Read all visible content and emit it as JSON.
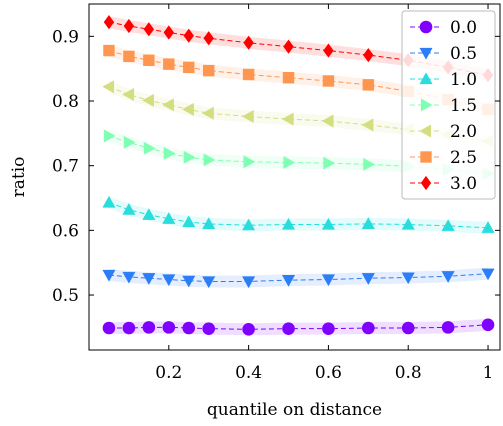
{
  "chart_data": {
    "type": "line",
    "xlabel": "quantile on distance",
    "ylabel": "ratio",
    "xlim": [
      0.0,
      1.03
    ],
    "ylim": [
      0.415,
      0.95
    ],
    "xticks": [
      0.2,
      0.4,
      0.6,
      0.8,
      1
    ],
    "xtick_labels": [
      "0.2",
      "0.4",
      "0.6",
      "0.8",
      "1"
    ],
    "yticks": [
      0.5,
      0.6,
      0.7,
      0.8,
      0.9
    ],
    "ytick_labels": [
      "0.5",
      "0.6",
      "0.7",
      "0.8",
      "0.9"
    ],
    "grid": false,
    "legend_position": "top-right",
    "x": [
      0.05,
      0.1,
      0.15,
      0.2,
      0.25,
      0.3,
      0.4,
      0.5,
      0.6,
      0.7,
      0.8,
      0.9,
      1.0
    ],
    "series": [
      {
        "name": "0.0",
        "color": "#8000ff",
        "marker": "circle",
        "values": [
          0.449,
          0.449,
          0.45,
          0.45,
          0.449,
          0.448,
          0.447,
          0.448,
          0.448,
          0.449,
          0.449,
          0.45,
          0.454
        ]
      },
      {
        "name": "0.5",
        "color": "#2c7ef7",
        "marker": "triangle-down",
        "values": [
          0.531,
          0.528,
          0.526,
          0.524,
          0.522,
          0.521,
          0.521,
          0.523,
          0.524,
          0.526,
          0.527,
          0.529,
          0.533
        ]
      },
      {
        "name": "1.0",
        "color": "#2adddd",
        "marker": "triangle-up",
        "values": [
          0.643,
          0.632,
          0.624,
          0.618,
          0.613,
          0.61,
          0.608,
          0.609,
          0.609,
          0.61,
          0.609,
          0.607,
          0.604
        ]
      },
      {
        "name": "1.5",
        "color": "#80ffb4",
        "marker": "triangle-right",
        "values": [
          0.746,
          0.736,
          0.727,
          0.719,
          0.713,
          0.709,
          0.706,
          0.705,
          0.704,
          0.702,
          0.699,
          0.694,
          0.688
        ]
      },
      {
        "name": "2.0",
        "color": "#d4dd80",
        "marker": "triangle-left",
        "values": [
          0.822,
          0.81,
          0.801,
          0.794,
          0.787,
          0.781,
          0.776,
          0.772,
          0.769,
          0.763,
          0.756,
          0.748,
          0.738
        ]
      },
      {
        "name": "2.5",
        "color": "#ff964f",
        "marker": "square",
        "values": [
          0.878,
          0.869,
          0.863,
          0.857,
          0.852,
          0.847,
          0.841,
          0.836,
          0.831,
          0.825,
          0.815,
          0.802,
          0.787
        ]
      },
      {
        "name": "3.0",
        "color": "#ff0000",
        "marker": "diamond",
        "values": [
          0.922,
          0.916,
          0.911,
          0.906,
          0.901,
          0.897,
          0.89,
          0.884,
          0.878,
          0.871,
          0.863,
          0.852,
          0.84
        ]
      }
    ]
  }
}
